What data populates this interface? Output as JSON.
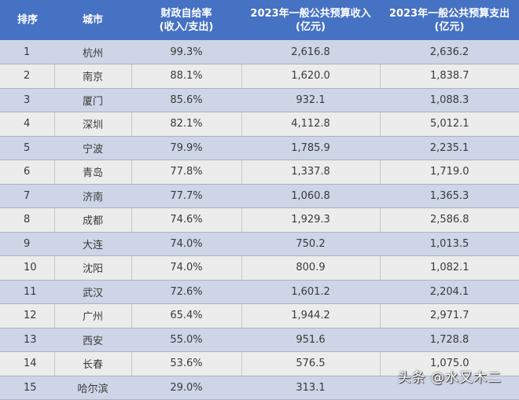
{
  "table": {
    "headers": [
      {
        "line1": "排序",
        "line2": ""
      },
      {
        "line1": "城市",
        "line2": ""
      },
      {
        "line1": "财政自给率",
        "line2": "(收入/支出)"
      },
      {
        "line1": "2023年一般公共预算收入",
        "line2": "(亿元)"
      },
      {
        "line1": "2023年一般公共预算支出",
        "line2": "(亿元)"
      }
    ],
    "rows": [
      {
        "rank": "1",
        "city": "杭州",
        "ratio": "99.3%",
        "revenue": "2,616.8",
        "expenditure": "2,636.2"
      },
      {
        "rank": "2",
        "city": "南京",
        "ratio": "88.1%",
        "revenue": "1,620.0",
        "expenditure": "1,838.7"
      },
      {
        "rank": "3",
        "city": "厦门",
        "ratio": "85.6%",
        "revenue": "932.1",
        "expenditure": "1,088.3"
      },
      {
        "rank": "4",
        "city": "深圳",
        "ratio": "82.1%",
        "revenue": "4,112.8",
        "expenditure": "5,012.1"
      },
      {
        "rank": "5",
        "city": "宁波",
        "ratio": "79.9%",
        "revenue": "1,785.9",
        "expenditure": "2,235.1"
      },
      {
        "rank": "6",
        "city": "青岛",
        "ratio": "77.8%",
        "revenue": "1,337.8",
        "expenditure": "1,719.0"
      },
      {
        "rank": "7",
        "city": "济南",
        "ratio": "77.7%",
        "revenue": "1,060.8",
        "expenditure": "1,365.3"
      },
      {
        "rank": "8",
        "city": "成都",
        "ratio": "74.6%",
        "revenue": "1,929.3",
        "expenditure": "2,586.8"
      },
      {
        "rank": "9",
        "city": "大连",
        "ratio": "74.0%",
        "revenue": "750.2",
        "expenditure": "1,013.5"
      },
      {
        "rank": "10",
        "city": "沈阳",
        "ratio": "74.0%",
        "revenue": "800.9",
        "expenditure": "1,082.1"
      },
      {
        "rank": "11",
        "city": "武汉",
        "ratio": "72.6%",
        "revenue": "1,601.2",
        "expenditure": "2,204.1"
      },
      {
        "rank": "12",
        "city": "广州",
        "ratio": "65.4%",
        "revenue": "1,944.2",
        "expenditure": "2,971.7"
      },
      {
        "rank": "13",
        "city": "西安",
        "ratio": "55.0%",
        "revenue": "951.6",
        "expenditure": "1,728.8"
      },
      {
        "rank": "14",
        "city": "长春",
        "ratio": "53.6%",
        "revenue": "576.5",
        "expenditure": "1,075.0"
      },
      {
        "rank": "15",
        "city": "哈尔滨",
        "ratio": "29.0%",
        "revenue": "313.1",
        "expenditure": ""
      }
    ]
  },
  "watermark": {
    "primary": "头条 @水又木二",
    "secondary": "@水又木二"
  },
  "colors": {
    "header_bg": "#4672c4",
    "odd_row_bg": "#cdd5e6",
    "even_row_bg": "#ececec"
  }
}
